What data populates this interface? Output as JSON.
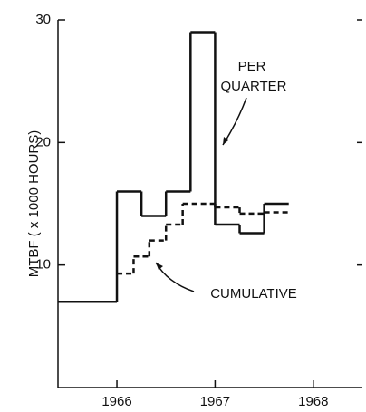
{
  "chart_data": {
    "type": "step",
    "y_label": "MTBF ( x 1000 HOURS)",
    "xlim": [
      1965.4,
      1968.5
    ],
    "xticks": [
      1966,
      1967,
      1968
    ],
    "ylim": [
      0,
      30
    ],
    "yticks": [
      10,
      20,
      30
    ],
    "series": [
      {
        "color": "#111111",
        "dash": false,
        "bins": [
          1965.4,
          1966,
          1966.25,
          1966.5,
          1966.75,
          1967,
          1967.25,
          1967.5,
          1967.75
        ],
        "values": [
          7,
          16,
          14,
          16,
          29,
          13.3,
          12.6,
          15
        ]
      },
      {
        "color": "#111111",
        "dash": true,
        "bins": [
          1966,
          1966.17,
          1966.33,
          1966.5,
          1966.67,
          1967,
          1967.25,
          1967.5,
          1967.75
        ],
        "values": [
          9.3,
          10.7,
          12,
          13.3,
          15,
          14.7,
          14.2,
          14.3
        ]
      }
    ],
    "annotations": [
      {
        "lines": [
          "PER",
          "QUARTER"
        ]
      },
      {
        "lines": [
          "CUMULATIVE"
        ]
      }
    ]
  }
}
